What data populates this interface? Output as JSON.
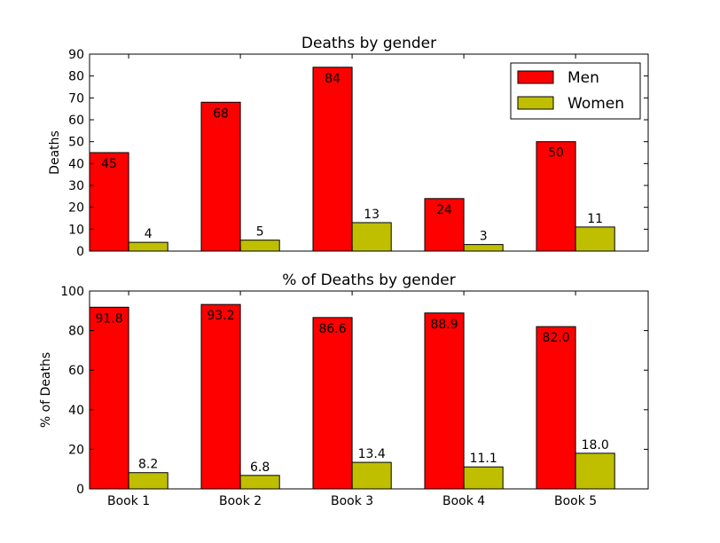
{
  "chart_data": [
    {
      "type": "bar",
      "title": "Deaths by gender",
      "xlabel": "",
      "ylabel": "Deaths",
      "ylim": [
        0,
        90
      ],
      "yticks": [
        0,
        10,
        20,
        30,
        40,
        50,
        60,
        70,
        80,
        90
      ],
      "categories": [
        "Book 1",
        "Book 2",
        "Book 3",
        "Book 4",
        "Book 5"
      ],
      "show_category_labels": false,
      "grid": false,
      "legend": "top-right",
      "series": [
        {
          "name": "Men",
          "color": "#ff0000",
          "values": [
            45,
            68,
            84,
            24,
            50
          ],
          "labels": [
            "45",
            "68",
            "84",
            "24",
            "50"
          ],
          "label_position": "inside"
        },
        {
          "name": "Women",
          "color": "#bfbf00",
          "values": [
            4,
            5,
            13,
            3,
            11
          ],
          "labels": [
            "4",
            "5",
            "13",
            "3",
            "11"
          ],
          "label_position": "above"
        }
      ]
    },
    {
      "type": "bar",
      "title": "% of Deaths by gender",
      "xlabel": "",
      "ylabel": "% of Deaths",
      "ylim": [
        0,
        100
      ],
      "yticks": [
        0,
        20,
        40,
        60,
        80,
        100
      ],
      "categories": [
        "Book 1",
        "Book 2",
        "Book 3",
        "Book 4",
        "Book 5"
      ],
      "show_category_labels": true,
      "grid": false,
      "legend": "none",
      "series": [
        {
          "color": "#ff0000",
          "values": [
            91.8,
            93.2,
            86.6,
            88.9,
            82.0
          ],
          "labels": [
            "91.8",
            "93.2",
            "86.6",
            "88.9",
            "82.0"
          ],
          "label_position": "inside"
        },
        {
          "color": "#bfbf00",
          "values": [
            8.2,
            6.8,
            13.4,
            11.1,
            18.0
          ],
          "labels": [
            "8.2",
            "6.8",
            "13.4",
            "11.1",
            "18.0"
          ],
          "label_position": "above"
        }
      ]
    }
  ]
}
